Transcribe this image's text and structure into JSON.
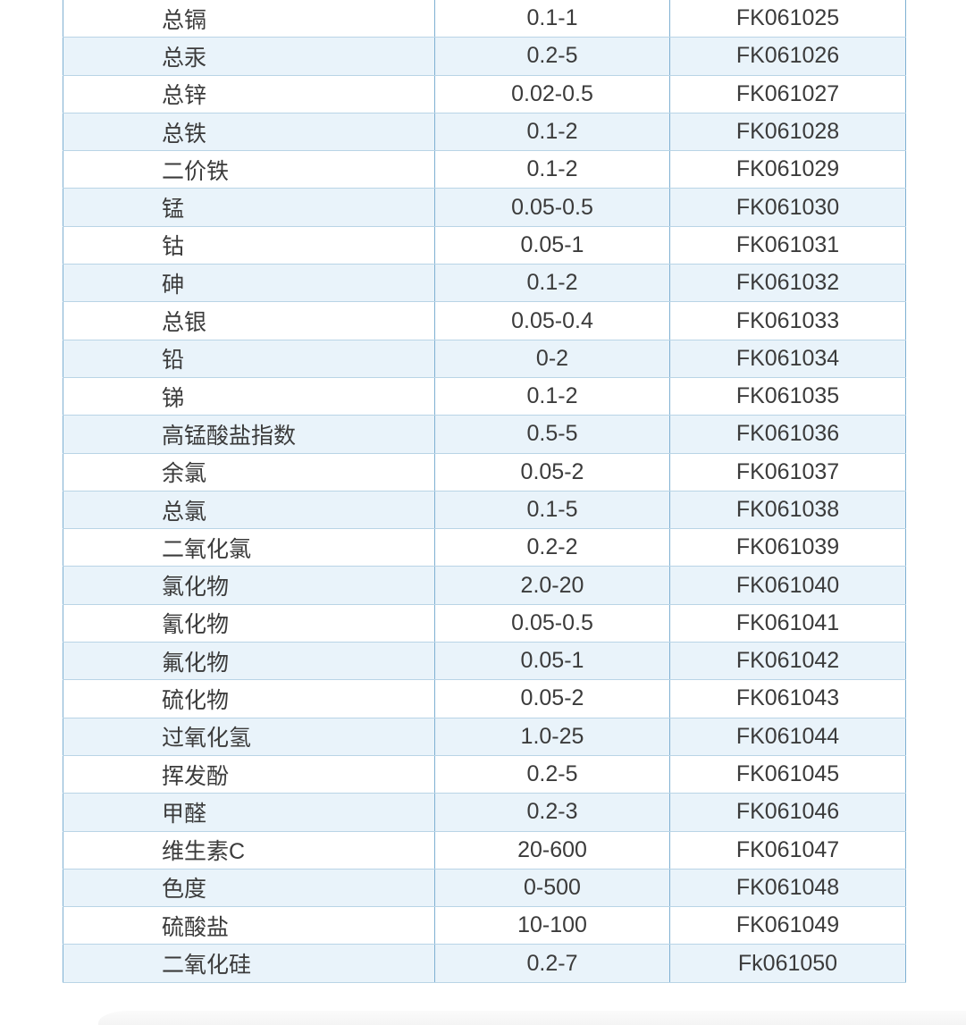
{
  "table": {
    "columns": [
      {
        "key": "name",
        "label": "parameter-name"
      },
      {
        "key": "range",
        "label": "measurement-range"
      },
      {
        "key": "code",
        "label": "product-code"
      }
    ],
    "rows": [
      {
        "name": "总镉",
        "range": "0.1-1",
        "code": "FK061025"
      },
      {
        "name": "总汞",
        "range": "0.2-5",
        "code": "FK061026"
      },
      {
        "name": "总锌",
        "range": "0.02-0.5",
        "code": "FK061027"
      },
      {
        "name": "总铁",
        "range": "0.1-2",
        "code": "FK061028"
      },
      {
        "name": "二价铁",
        "range": "0.1-2",
        "code": "FK061029"
      },
      {
        "name": "锰",
        "range": "0.05-0.5",
        "code": "FK061030"
      },
      {
        "name": "钴",
        "range": "0.05-1",
        "code": "FK061031"
      },
      {
        "name": "砷",
        "range": "0.1-2",
        "code": "FK061032"
      },
      {
        "name": "总银",
        "range": "0.05-0.4",
        "code": "FK061033"
      },
      {
        "name": "铅",
        "range": "0-2",
        "code": "FK061034"
      },
      {
        "name": "锑",
        "range": "0.1-2",
        "code": "FK061035"
      },
      {
        "name": "高锰酸盐指数",
        "range": "0.5-5",
        "code": "FK061036"
      },
      {
        "name": "余氯",
        "range": "0.05-2",
        "code": "FK061037"
      },
      {
        "name": "总氯",
        "range": "0.1-5",
        "code": "FK061038"
      },
      {
        "name": "二氧化氯",
        "range": "0.2-2",
        "code": "FK061039"
      },
      {
        "name": "氯化物",
        "range": "2.0-20",
        "code": "FK061040"
      },
      {
        "name": "氰化物",
        "range": "0.05-0.5",
        "code": "FK061041"
      },
      {
        "name": "氟化物",
        "range": "0.05-1",
        "code": "FK061042"
      },
      {
        "name": "硫化物",
        "range": "0.05-2",
        "code": "FK061043"
      },
      {
        "name": "过氧化氢",
        "range": "1.0-25",
        "code": "FK061044"
      },
      {
        "name": "挥发酚",
        "range": "0.2-5",
        "code": "FK061045"
      },
      {
        "name": "甲醛",
        "range": "0.2-3",
        "code": "FK061046"
      },
      {
        "name": "维生素C",
        "range": "20-600",
        "code": "FK061047"
      },
      {
        "name": "色度",
        "range": "0-500",
        "code": "FK061048"
      },
      {
        "name": "硫酸盐",
        "range": "10-100",
        "code": "FK061049"
      },
      {
        "name": "二氧化硅",
        "range": "0.2-7",
        "code": "Fk061050"
      }
    ]
  },
  "colors": {
    "row_white": "#ffffff",
    "row_alt_blue": "#e9f3fa",
    "border_vertical": "#7fb0d2",
    "border_horizontal": "#b9d4e6",
    "text": "#3b3b3b"
  }
}
